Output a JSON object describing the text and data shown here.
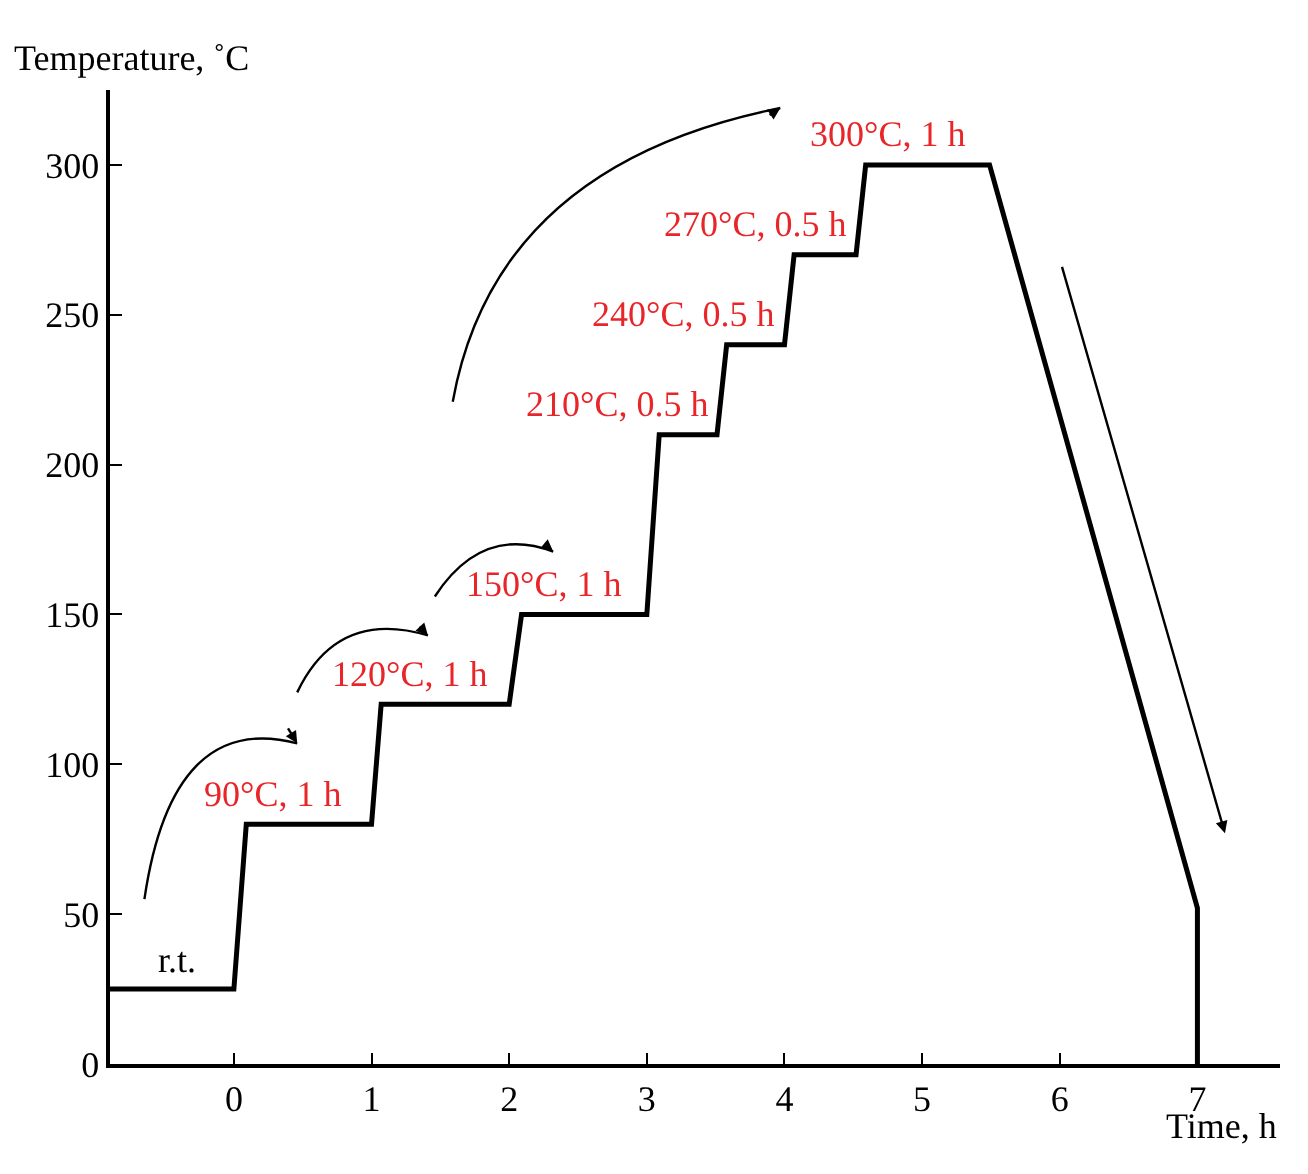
{
  "chart_data": {
    "type": "line",
    "xlabel": "Time, h",
    "ylabel": "Temperature, ˚C",
    "x": [
      -0.9,
      0,
      0.09,
      1,
      1.07,
      2,
      2.09,
      3,
      3.09,
      3.51,
      3.58,
      4,
      4.07,
      4.52,
      4.59,
      5.49,
      7,
      7
    ],
    "series": [
      {
        "color": "#000000",
        "values": [
          25,
          25,
          80,
          80,
          120,
          120,
          150,
          150,
          210,
          210,
          240,
          240,
          270,
          270,
          300,
          300,
          52,
          0
        ]
      }
    ],
    "xlim": [
      -0.9,
      7.6
    ],
    "ylim": [
      0,
      325
    ],
    "xticks": [
      0,
      1,
      2,
      3,
      4,
      5,
      6,
      7
    ],
    "yticks": [
      0,
      50,
      100,
      150,
      200,
      250,
      300
    ],
    "marker": "none",
    "line_style": "solid",
    "annotations": [
      {
        "text": "r.t.",
        "x": -0.41,
        "y": 25
      },
      {
        "text": "90°C, 1 h",
        "x": 0.29,
        "y": 80
      },
      {
        "text": "120°C, 1 h",
        "x": 1.28,
        "y": 120
      },
      {
        "text": "150°C, 1 h",
        "x": 2.26,
        "y": 150
      },
      {
        "text": "210°C, 0.5 h",
        "x": 3.51,
        "y": 210
      },
      {
        "text": "240°C, 0.5 h",
        "x": 4,
        "y": 240
      },
      {
        "text": "270°C, 0.5 h",
        "x": 4.52,
        "y": 270
      },
      {
        "text": "300°C, 1 h",
        "x": 4.75,
        "y": 300
      }
    ]
  }
}
